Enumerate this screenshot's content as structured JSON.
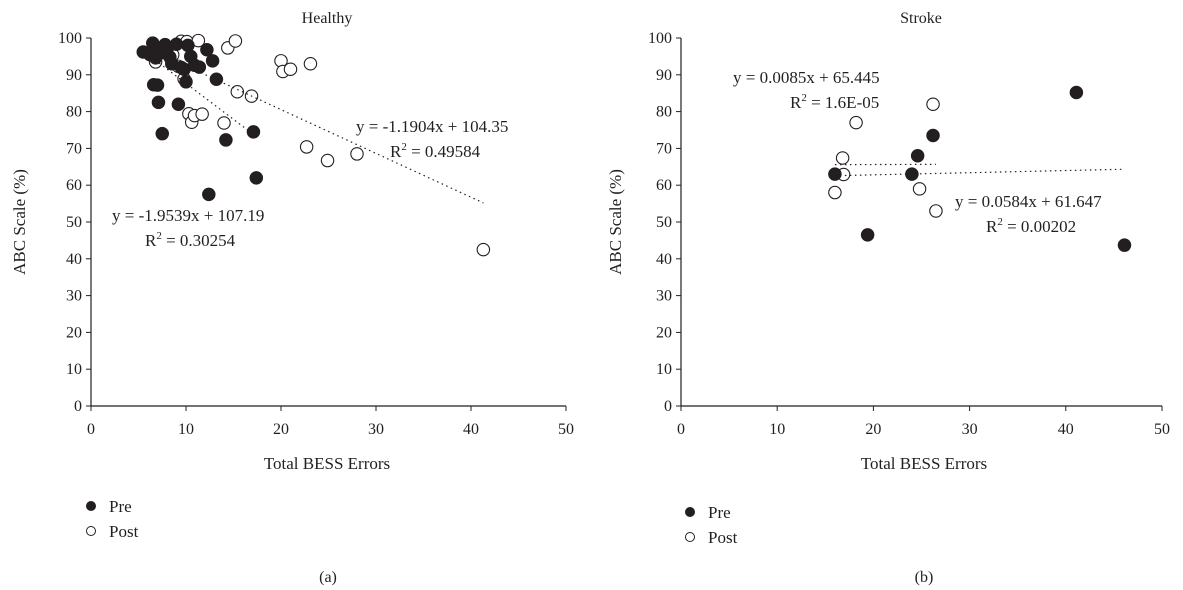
{
  "chart_data": [
    {
      "type": "scatter",
      "panel_label": "(a)",
      "title": "Healthy",
      "xlabel": "Total BESS Errors",
      "ylabel": "ABC Scale (%)",
      "xlim": [
        0,
        50
      ],
      "ylim": [
        0,
        100
      ],
      "x_ticks": [
        "0",
        "10",
        "20",
        "30",
        "40",
        "50"
      ],
      "y_ticks": [
        "0",
        "10",
        "20",
        "30",
        "40",
        "50",
        "60",
        "70",
        "80",
        "90",
        "100"
      ],
      "grid": false,
      "legend_position": "bottom-left",
      "series": [
        {
          "name": "Pre",
          "marker": "filled-circle",
          "color": "#231f20",
          "points": [
            [
              5.5,
              96.2
            ],
            [
              6.2,
              95.5
            ],
            [
              6.5,
              98.6
            ],
            [
              6.6,
              87.3
            ],
            [
              6.8,
              94.6
            ],
            [
              7.0,
              87.2
            ],
            [
              7.1,
              82.5
            ],
            [
              7.2,
              95.8
            ],
            [
              7.5,
              74.0
            ],
            [
              7.8,
              98.2
            ],
            [
              8.0,
              97.0
            ],
            [
              8.3,
              94.8
            ],
            [
              8.5,
              93.0
            ],
            [
              9.0,
              98.3
            ],
            [
              9.2,
              82.0
            ],
            [
              9.5,
              92.0
            ],
            [
              9.8,
              91.5
            ],
            [
              10.0,
              88.1
            ],
            [
              10.2,
              98.0
            ],
            [
              10.5,
              95.0
            ],
            [
              10.9,
              92.6
            ],
            [
              11.4,
              92.1
            ],
            [
              12.2,
              96.8
            ],
            [
              12.4,
              57.5
            ],
            [
              12.8,
              93.8
            ],
            [
              13.2,
              88.8
            ],
            [
              14.2,
              72.3
            ],
            [
              17.1,
              74.5
            ],
            [
              17.4,
              62.0
            ]
          ]
        },
        {
          "name": "Post",
          "marker": "open-circle",
          "color": "#231f20",
          "points": [
            [
              6.8,
              93.5
            ],
            [
              7.3,
              96.1
            ],
            [
              8.6,
              95.4
            ],
            [
              9.2,
              92.3
            ],
            [
              9.5,
              99.1
            ],
            [
              9.8,
              88.9
            ],
            [
              10.1,
              99.0
            ],
            [
              10.3,
              79.4
            ],
            [
              10.6,
              77.1
            ],
            [
              10.9,
              78.9
            ],
            [
              11.3,
              99.3
            ],
            [
              11.7,
              79.3
            ],
            [
              14.0,
              76.9
            ],
            [
              14.4,
              97.3
            ],
            [
              15.2,
              99.2
            ],
            [
              15.4,
              85.4
            ],
            [
              16.9,
              84.2
            ],
            [
              20.0,
              93.8
            ],
            [
              20.2,
              90.9
            ],
            [
              21.0,
              91.5
            ],
            [
              22.7,
              70.4
            ],
            [
              23.1,
              93.0
            ],
            [
              24.9,
              66.7
            ],
            [
              28.0,
              68.5
            ],
            [
              41.3,
              42.5
            ]
          ]
        }
      ],
      "trendlines": [
        {
          "series": "Pre",
          "slope": -1.9539,
          "intercept": 107.19,
          "x_range": [
            5.5,
            17.5
          ],
          "equation": "y = -1.9539x + 107.19",
          "r2_prefix": "R",
          "r2_sup": "2",
          "r2_value": " = 0.30254"
        },
        {
          "series": "Post",
          "slope": -1.1904,
          "intercept": 104.35,
          "x_range": [
            6.8,
            41.3
          ],
          "equation": "y = -1.1904x + 104.35",
          "r2_prefix": "R",
          "r2_sup": "2",
          "r2_value": " = 0.49584"
        }
      ]
    },
    {
      "type": "scatter",
      "panel_label": "(b)",
      "title": "Stroke",
      "xlabel": "Total BESS Errors",
      "ylabel": "ABC Scale (%)",
      "xlim": [
        0,
        50
      ],
      "ylim": [
        0,
        100
      ],
      "x_ticks": [
        "0",
        "10",
        "20",
        "30",
        "40",
        "50"
      ],
      "y_ticks": [
        "0",
        "10",
        "20",
        "30",
        "40",
        "50",
        "60",
        "70",
        "80",
        "90",
        "100"
      ],
      "grid": false,
      "legend_position": "bottom-left",
      "series": [
        {
          "name": "Pre",
          "marker": "filled-circle",
          "color": "#231f20",
          "points": [
            [
              16.0,
              63.0
            ],
            [
              19.4,
              46.5
            ],
            [
              24.0,
              63.0
            ],
            [
              24.6,
              68.0
            ],
            [
              26.2,
              73.5
            ],
            [
              41.1,
              85.2
            ],
            [
              46.1,
              43.7
            ]
          ]
        },
        {
          "name": "Post",
          "marker": "open-circle",
          "color": "#231f20",
          "points": [
            [
              16.0,
              58.0
            ],
            [
              16.8,
              67.4
            ],
            [
              16.9,
              62.9
            ],
            [
              18.2,
              77.0
            ],
            [
              24.8,
              59.0
            ],
            [
              26.2,
              82.0
            ],
            [
              26.5,
              53.0
            ]
          ]
        }
      ],
      "trendlines": [
        {
          "series": "Pre",
          "slope": 0.0584,
          "intercept": 61.647,
          "x_range": [
            16.0,
            46.1
          ],
          "equation": "y = 0.0584x + 61.647",
          "r2_prefix": "R",
          "r2_sup": "2",
          "r2_value": " = 0.00202"
        },
        {
          "series": "Post",
          "slope": 0.0085,
          "intercept": 65.445,
          "x_range": [
            16.0,
            26.5
          ],
          "equation": "y = 0.0085x + 65.445",
          "r2_prefix": "R",
          "r2_sup": "2",
          "r2_value": " = 1.6E-05"
        }
      ]
    }
  ]
}
